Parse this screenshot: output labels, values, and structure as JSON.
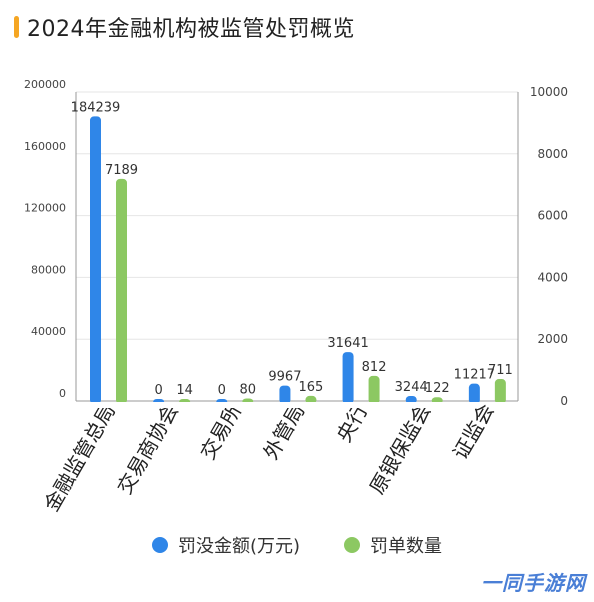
{
  "title": "2024年金融机构被监管处罚概览",
  "colors": {
    "accent": "#f5a623",
    "series_fines": "#2f86e8",
    "series_count": "#8cc862"
  },
  "legend": {
    "fines": "罚没金额(万元)",
    "count": "罚单数量"
  },
  "watermark": "一同手游网",
  "chart_data": {
    "type": "bar",
    "categories": [
      "金融监管总局",
      "交易商协会",
      "交易所",
      "外管局",
      "央行",
      "原银保监会",
      "证监会"
    ],
    "series": [
      {
        "name": "罚没金额(万元)",
        "axis": "left",
        "values": [
          184239,
          0,
          0,
          9967,
          31641,
          3244,
          11217
        ],
        "labels": [
          "184239",
          "0",
          "0",
          "9967",
          "31641",
          "3244",
          "11217"
        ]
      },
      {
        "name": "罚单数量",
        "axis": "right",
        "values": [
          7189,
          14,
          80,
          165,
          812,
          122,
          711
        ],
        "labels": [
          "7189",
          "14",
          "80",
          "165",
          "812",
          "122",
          "711"
        ]
      }
    ],
    "left_axis": {
      "ylim": [
        0,
        200000
      ],
      "ticks": [
        "0",
        "40000",
        "80000",
        "120000",
        "160000",
        "200000"
      ]
    },
    "right_axis": {
      "ylim": [
        0,
        10000
      ],
      "ticks": [
        "0",
        "2000",
        "4000",
        "6000",
        "8000",
        "10000"
      ]
    },
    "legend_position": "bottom"
  }
}
